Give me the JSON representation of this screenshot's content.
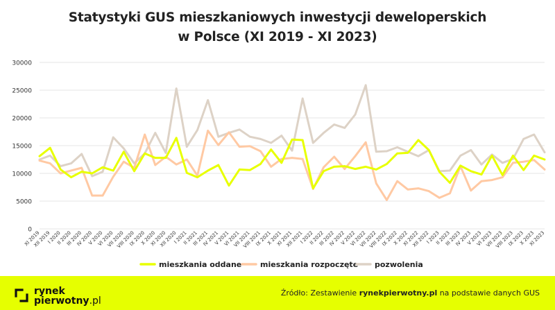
{
  "title_line1": "Statystyki GUS mieszkaniowych inwestycji deweloperskich",
  "title_line2": "w Polsce (XI 2019 - XI 2023)",
  "footer": {
    "logo_line1": "rynek",
    "logo_line2": "pierwotny",
    "logo_suffix": ".pl",
    "source_prefix": "Źródło: Zestawienie ",
    "source_site": "rynekpierwotny.pl",
    "source_suffix": " na podstawie danych GUS"
  },
  "colors": {
    "oddane": "#e8ff00",
    "rozpoczete": "#ffc9a3",
    "pozwolenia": "#ddd2c6",
    "footer": "#e6ff00",
    "grid": "#e6e6e6"
  },
  "chart_data": {
    "type": "line",
    "title": "Statystyki GUS mieszkaniowych inwestycji deweloperskich w Polsce (XI 2019 - XI 2023)",
    "ylim": [
      0,
      30000
    ],
    "yticks": [
      0,
      5000,
      10000,
      15000,
      20000,
      25000,
      30000
    ],
    "grid": true,
    "legend": "bottom",
    "categories": [
      "XI 2019",
      "XII 2019",
      "I 2020",
      "II 2020",
      "III 2020",
      "IV 2020",
      "V 2020",
      "VI 2020",
      "VII 2020",
      "VIII 2020",
      "IX 2020",
      "X 2020",
      "XI 2020",
      "XII 2020",
      "I 2021",
      "II 2021",
      "III 2021",
      "IV 2021",
      "V 2021",
      "VI 2021",
      "VII 2021",
      "VIII 2021",
      "IX 2021",
      "X 2021",
      "XI 2021",
      "XII 2021",
      "I 2022",
      "II 2022",
      "III 2022",
      "IV 2022",
      "V 2022",
      "VI 2022",
      "VII 2022",
      "VIII 2022",
      "IX 2022",
      "X 2022",
      "XI 2022",
      "XII 2022",
      "I 2023",
      "II 2023",
      "III 2023",
      "IV 2023",
      "V 2023",
      "VI 2023",
      "VII 2023",
      "VIII 2023",
      "IX 2023",
      "X 2023",
      "XI 2023"
    ],
    "tick_labels": [
      "XI 2019",
      "XII 2019",
      "I 2020",
      "II 2020",
      "III 2020",
      "IV 2020",
      "V 2020",
      "VI 2020",
      "VII 2020",
      "VIII 2020",
      "IX 2020",
      "X 2020",
      "XI 2020",
      "XII 2020",
      "I 2021",
      "II 2021",
      "III 2021",
      "IV 2021",
      "V 2021",
      "VI 2021",
      "VII 2021",
      "VIII 2021",
      "IX 2021",
      "X 2021",
      "XI 2021",
      "XII 2021",
      "I 2022",
      "II 2022",
      "III 2022",
      "IV 2022",
      "V 2022",
      "VI 2022",
      "VII 2022",
      "VIII 2022",
      "IX 2022",
      "X 2022",
      "XI 2022",
      "XII 2022",
      "I 2023",
      "II 2023",
      "III 2023",
      "IV 2023",
      "V 2023",
      "VI 2023",
      "VII 2023",
      "VIII 2023",
      "IX 2023",
      "X 2023",
      "XI 2023"
    ],
    "series": [
      {
        "name": "mieszkania oddane",
        "color": "#e8ff00",
        "values": [
          13100,
          14600,
          10700,
          9300,
          10300,
          10000,
          11100,
          10500,
          13900,
          10400,
          13600,
          12800,
          12800,
          16400,
          10100,
          9300,
          10500,
          11500,
          7800,
          10700,
          10600,
          11700,
          14300,
          11900,
          16100,
          16000,
          7300,
          10400,
          11200,
          11300,
          10800,
          11200,
          10700,
          11700,
          13600,
          13700,
          16000,
          14200,
          10300,
          8300,
          11400,
          10400,
          9800,
          13200,
          9700,
          13200,
          10600,
          13200,
          12500
        ]
      },
      {
        "name": "mieszkania rozpoczęte",
        "color": "#ffc9a3",
        "values": [
          12300,
          11800,
          10000,
          10500,
          11000,
          6000,
          6000,
          9400,
          12100,
          11000,
          17000,
          11500,
          13000,
          11600,
          12500,
          9600,
          17700,
          15100,
          17400,
          14800,
          14900,
          14000,
          11200,
          12600,
          12800,
          12600,
          7200,
          11100,
          13000,
          10800,
          13100,
          15600,
          8200,
          5200,
          8600,
          7100,
          7300,
          6800,
          5600,
          6400,
          11300,
          6900,
          8600,
          8800,
          9300,
          11900,
          12100,
          12400,
          10700
        ]
      },
      {
        "name": "pozwolenia",
        "color": "#ddd2c6",
        "values": [
          12500,
          13200,
          11300,
          11800,
          13500,
          9500,
          10300,
          16500,
          14500,
          11800,
          13600,
          17300,
          13700,
          25300,
          14800,
          17800,
          23200,
          16600,
          17300,
          17900,
          16600,
          16200,
          15500,
          16800,
          14100,
          23500,
          15500,
          17300,
          18800,
          18200,
          20600,
          25900,
          13900,
          14000,
          14700,
          13900,
          13100,
          14200,
          10400,
          10500,
          13200,
          14200,
          11600,
          13400,
          11900,
          12600,
          16200,
          17000,
          13800
        ]
      }
    ]
  }
}
